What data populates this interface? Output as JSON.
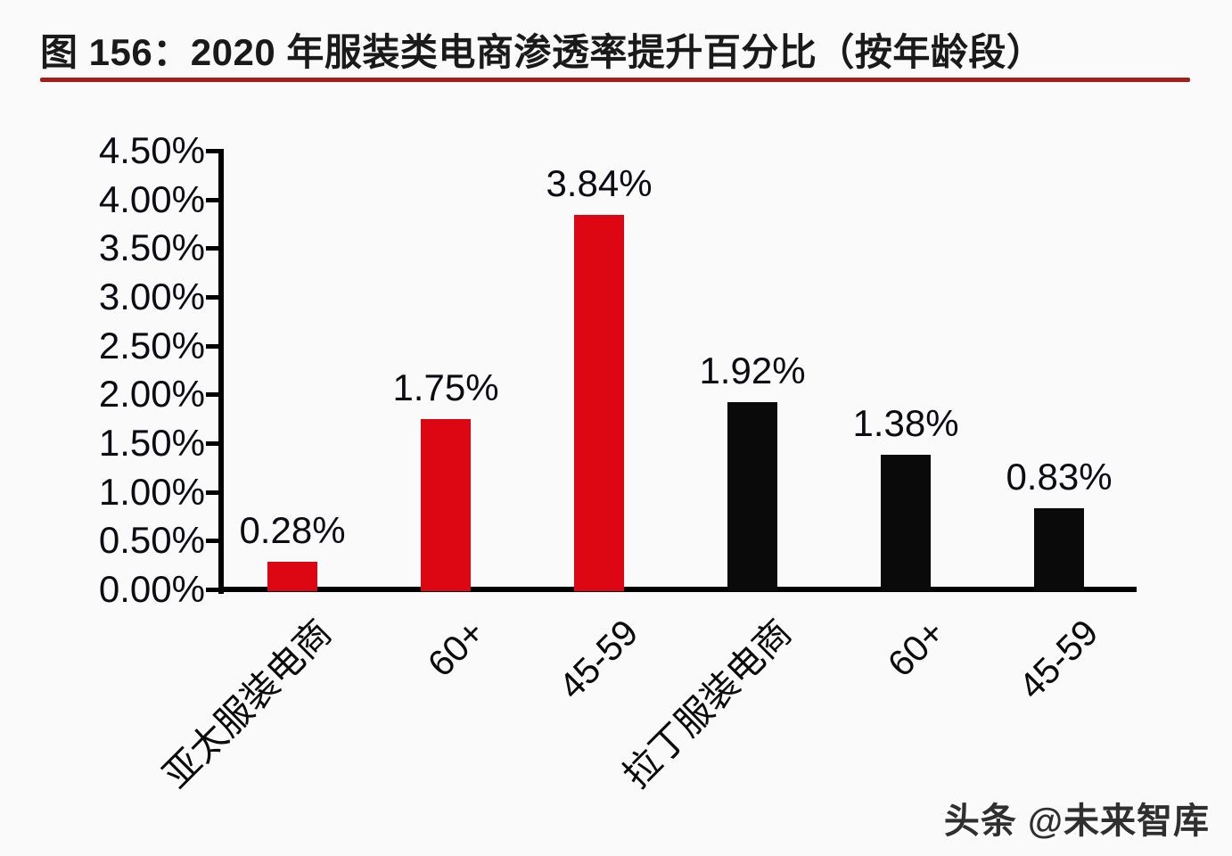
{
  "figure": {
    "title": "图 156：2020 年服装类电商渗透率提升百分比（按年龄段）",
    "watermark": "头条 @未来智库"
  },
  "colors": {
    "series_red": "#dd0713",
    "series_black": "#0a0a0a",
    "title_rule": "#a61e1c",
    "axis": "#000000",
    "background": "#fafafa"
  },
  "chart_data": {
    "type": "bar",
    "title": "图 156：2020 年服装类电商渗透率提升百分比（按年龄段）",
    "categories": [
      "亚太服装电商",
      "60+",
      "45-59",
      "拉丁服装电商",
      "60+",
      "45-59"
    ],
    "values": [
      0.28,
      1.75,
      3.84,
      1.92,
      1.38,
      0.83
    ],
    "data_labels": [
      "0.28%",
      "1.75%",
      "3.84%",
      "1.92%",
      "1.38%",
      "0.83%"
    ],
    "series_colors": [
      "red",
      "red",
      "red",
      "black",
      "black",
      "black"
    ],
    "y_tick_labels": [
      "4.50%",
      "4.00%",
      "3.50%",
      "3.00%",
      "2.50%",
      "2.00%",
      "1.50%",
      "1.00%",
      "0.50%",
      "0.00%"
    ],
    "ylim": [
      0,
      4.5
    ],
    "grid": false,
    "legend_position": "none",
    "x_label_rotation_deg": 45,
    "xlabel": "",
    "ylabel": ""
  }
}
